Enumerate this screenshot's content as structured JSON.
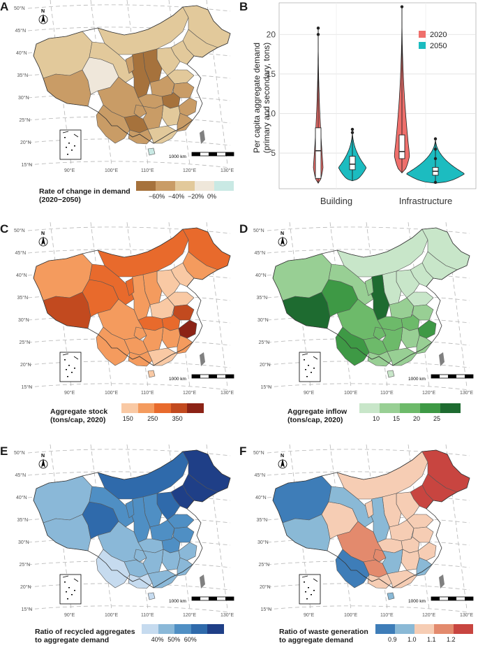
{
  "panels": {
    "A": {
      "label": "A",
      "legend_title_1": "Rate of change in demand",
      "legend_title_2": "(2020−2050)",
      "legend_colors": [
        "#a6723c",
        "#c99c66",
        "#e2c99b",
        "#efe7da",
        "#c9e9e4"
      ],
      "legend_ticks": [
        "−60%",
        "−40%",
        "−20%",
        "0%"
      ]
    },
    "C": {
      "label": "C",
      "legend_title_1": "Aggregate stock",
      "legend_title_2": "(tons/cap, 2020)",
      "legend_colors": [
        "#f9c9a4",
        "#f49b5e",
        "#e86a2c",
        "#c24a1f",
        "#8c2316"
      ],
      "legend_ticks": [
        "150",
        "250",
        "350"
      ]
    },
    "D": {
      "label": "D",
      "legend_title_1": "Aggregate inflow",
      "legend_title_2": "(tons/cap, 2020)",
      "legend_colors": [
        "#c8e6c9",
        "#98cf94",
        "#6dba6a",
        "#3e9945",
        "#1e6b30"
      ],
      "legend_ticks": [
        "10",
        "15",
        "20",
        "25"
      ]
    },
    "E": {
      "label": "E",
      "legend_title_1": "Ratio of recycled aggregates",
      "legend_title_2": "to aggregate demand",
      "legend_colors": [
        "#c6dbef",
        "#8ab8d8",
        "#4f8fc4",
        "#2f6aab",
        "#1f3f87"
      ],
      "legend_ticks": [
        "40%",
        "50%",
        "60%"
      ]
    },
    "F": {
      "label": "F",
      "legend_title_1": "Ratio of waste generation",
      "legend_title_2": "to aggregate demand",
      "legend_colors": [
        "#3e7db8",
        "#8ab9d6",
        "#f6cdb4",
        "#e38a6d",
        "#c84540"
      ],
      "legend_ticks": [
        "0.9",
        "1.0",
        "1.1",
        "1.2"
      ]
    }
  },
  "map_common": {
    "lat_labels": [
      "50°N",
      "45°N",
      "40°N",
      "35°N",
      "30°N",
      "25°N",
      "20°N",
      "15°N"
    ],
    "lon_labels": [
      "90°E",
      "100°E",
      "110°E",
      "120°E",
      "130°E"
    ],
    "north_label": "N",
    "scale_label": "1000 km"
  },
  "chart_data": {
    "type": "violin",
    "label": "B",
    "title": "",
    "xlabel": "",
    "ylabel": "Per capita aggregate demand (primary and secondary, tons)",
    "ylabel_line1": "Per capita aggregate demand",
    "ylabel_line2": "(primary and secondary, tons)",
    "ylim": [
      0.5,
      24
    ],
    "yticks": [
      5,
      10,
      15,
      20
    ],
    "categories": [
      "Building",
      "Infrastructure"
    ],
    "legend": {
      "position": "top-right",
      "entries": [
        "2020",
        "2050"
      ]
    },
    "series": [
      {
        "name": "2020",
        "color": "#ef6f6b",
        "Building": {
          "min": 1.2,
          "q1": 1.8,
          "median": 5.3,
          "q3": 8.2,
          "max": 20.8,
          "outliers": [
            20.0,
            20.8
          ]
        },
        "Infrastructure": {
          "min": 2.5,
          "q1": 4.3,
          "median": 5.2,
          "q3": 7.3,
          "max": 23.5,
          "outliers": [
            23.5
          ]
        }
      },
      {
        "name": "2050",
        "color": "#1cbcc0",
        "Building": {
          "min": 1.5,
          "q1": 2.9,
          "median": 3.6,
          "q3": 4.6,
          "max": 8.0,
          "outliers": [
            7.6,
            8.0
          ]
        },
        "Infrastructure": {
          "min": 1.2,
          "q1": 2.2,
          "median": 2.7,
          "q3": 3.2,
          "max": 7.0,
          "outliers": [
            6.8,
            5.5,
            4.3,
            1.3
          ]
        }
      }
    ]
  }
}
